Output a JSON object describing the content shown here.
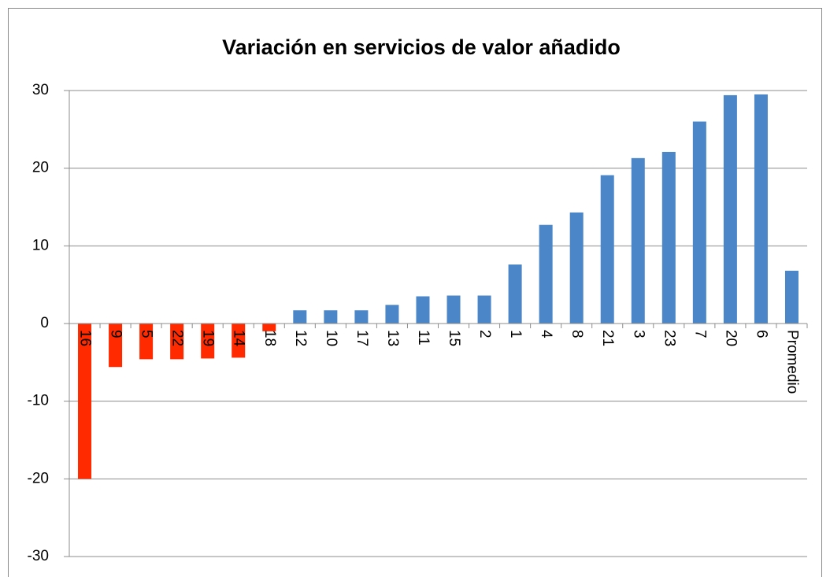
{
  "chart_data": {
    "type": "bar",
    "title": "Variación en servicios de valor añadido",
    "categories": [
      "16",
      "9",
      "5",
      "22",
      "19",
      "14",
      "18",
      "12",
      "10",
      "17",
      "13",
      "11",
      "15",
      "2",
      "1",
      "4",
      "8",
      "21",
      "3",
      "23",
      "7",
      "20",
      "6",
      "Promedio"
    ],
    "values": [
      -20.0,
      -5.6,
      -4.6,
      -4.6,
      -4.5,
      -4.4,
      -1.0,
      1.7,
      1.7,
      1.7,
      2.4,
      3.5,
      3.6,
      3.6,
      7.6,
      12.7,
      14.3,
      19.1,
      21.3,
      22.1,
      26.0,
      29.4,
      29.5,
      6.8
    ],
    "color": "#4a86c8",
    "negative_color": "#ff2a00",
    "ylim": [
      -30,
      30
    ],
    "yticks": [
      -30,
      -20,
      -10,
      0,
      10,
      20,
      30
    ],
    "grid": true
  }
}
